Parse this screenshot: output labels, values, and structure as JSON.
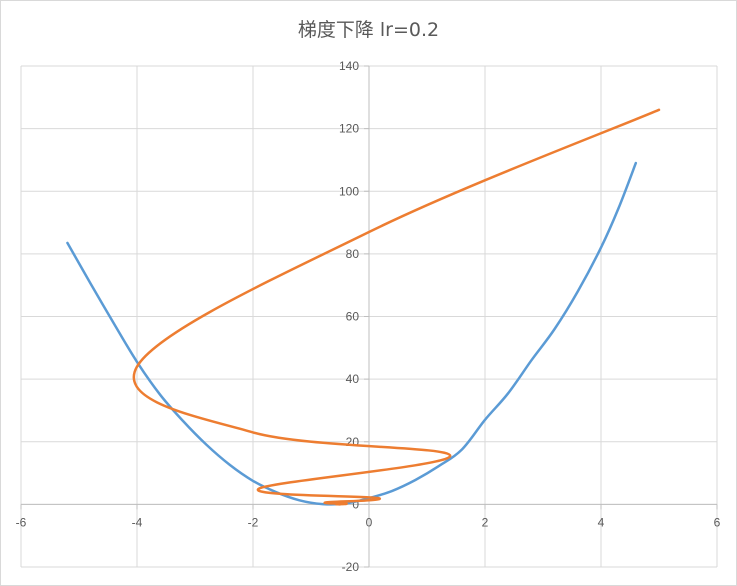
{
  "chart_data": {
    "type": "scatter",
    "title": "梯度下降 lr=0.2",
    "xlabel": "",
    "ylabel": "",
    "xlim": [
      -6,
      6
    ],
    "ylim": [
      -20,
      140
    ],
    "x_ticks": [
      -6,
      -4,
      -2,
      0,
      2,
      4,
      6
    ],
    "y_ticks": [
      -20,
      0,
      20,
      40,
      60,
      80,
      100,
      120,
      140
    ],
    "x_tick_labels": [
      "-6",
      "-4",
      "-2",
      "0",
      "2",
      "4",
      "6"
    ],
    "y_tick_labels": [
      "-20",
      "0",
      "20",
      "40",
      "60",
      "80",
      "100",
      "120",
      "140"
    ],
    "grid": true,
    "legend": "none",
    "series": [
      {
        "color": "#5B9BD5",
        "style": "smooth-line",
        "x": [
          -5.2,
          -4.8,
          -4.4,
          -4.0,
          -3.6,
          -3.2,
          -2.8,
          -2.4,
          -2.0,
          -1.6,
          -1.2,
          -0.8,
          -0.4,
          0.0,
          0.4,
          0.8,
          1.2,
          1.6,
          2.0,
          2.4,
          2.8,
          3.2,
          3.6,
          4.0,
          4.3,
          4.6
        ],
        "y": [
          83.5,
          70.5,
          57.8,
          45.5,
          35.0,
          26.5,
          19.0,
          12.6,
          7.5,
          3.9,
          1.3,
          0.1,
          0.3,
          2.0,
          4.3,
          7.8,
          12.2,
          17.5,
          27.0,
          35.5,
          46.0,
          56.0,
          68.0,
          82.0,
          94.5,
          109.0
        ]
      },
      {
        "color": "#ED7D31",
        "style": "smooth-line",
        "x": [
          5.0,
          0.0,
          -4.0,
          -2.0,
          1.4,
          -1.9,
          0.16,
          -0.75,
          -0.39,
          -0.56,
          -0.5
        ],
        "y": [
          126.0,
          87.0,
          44.0,
          23.0,
          15.5,
          5.0,
          2.0,
          0.6,
          0.2,
          0.05,
          0.0
        ]
      }
    ]
  }
}
